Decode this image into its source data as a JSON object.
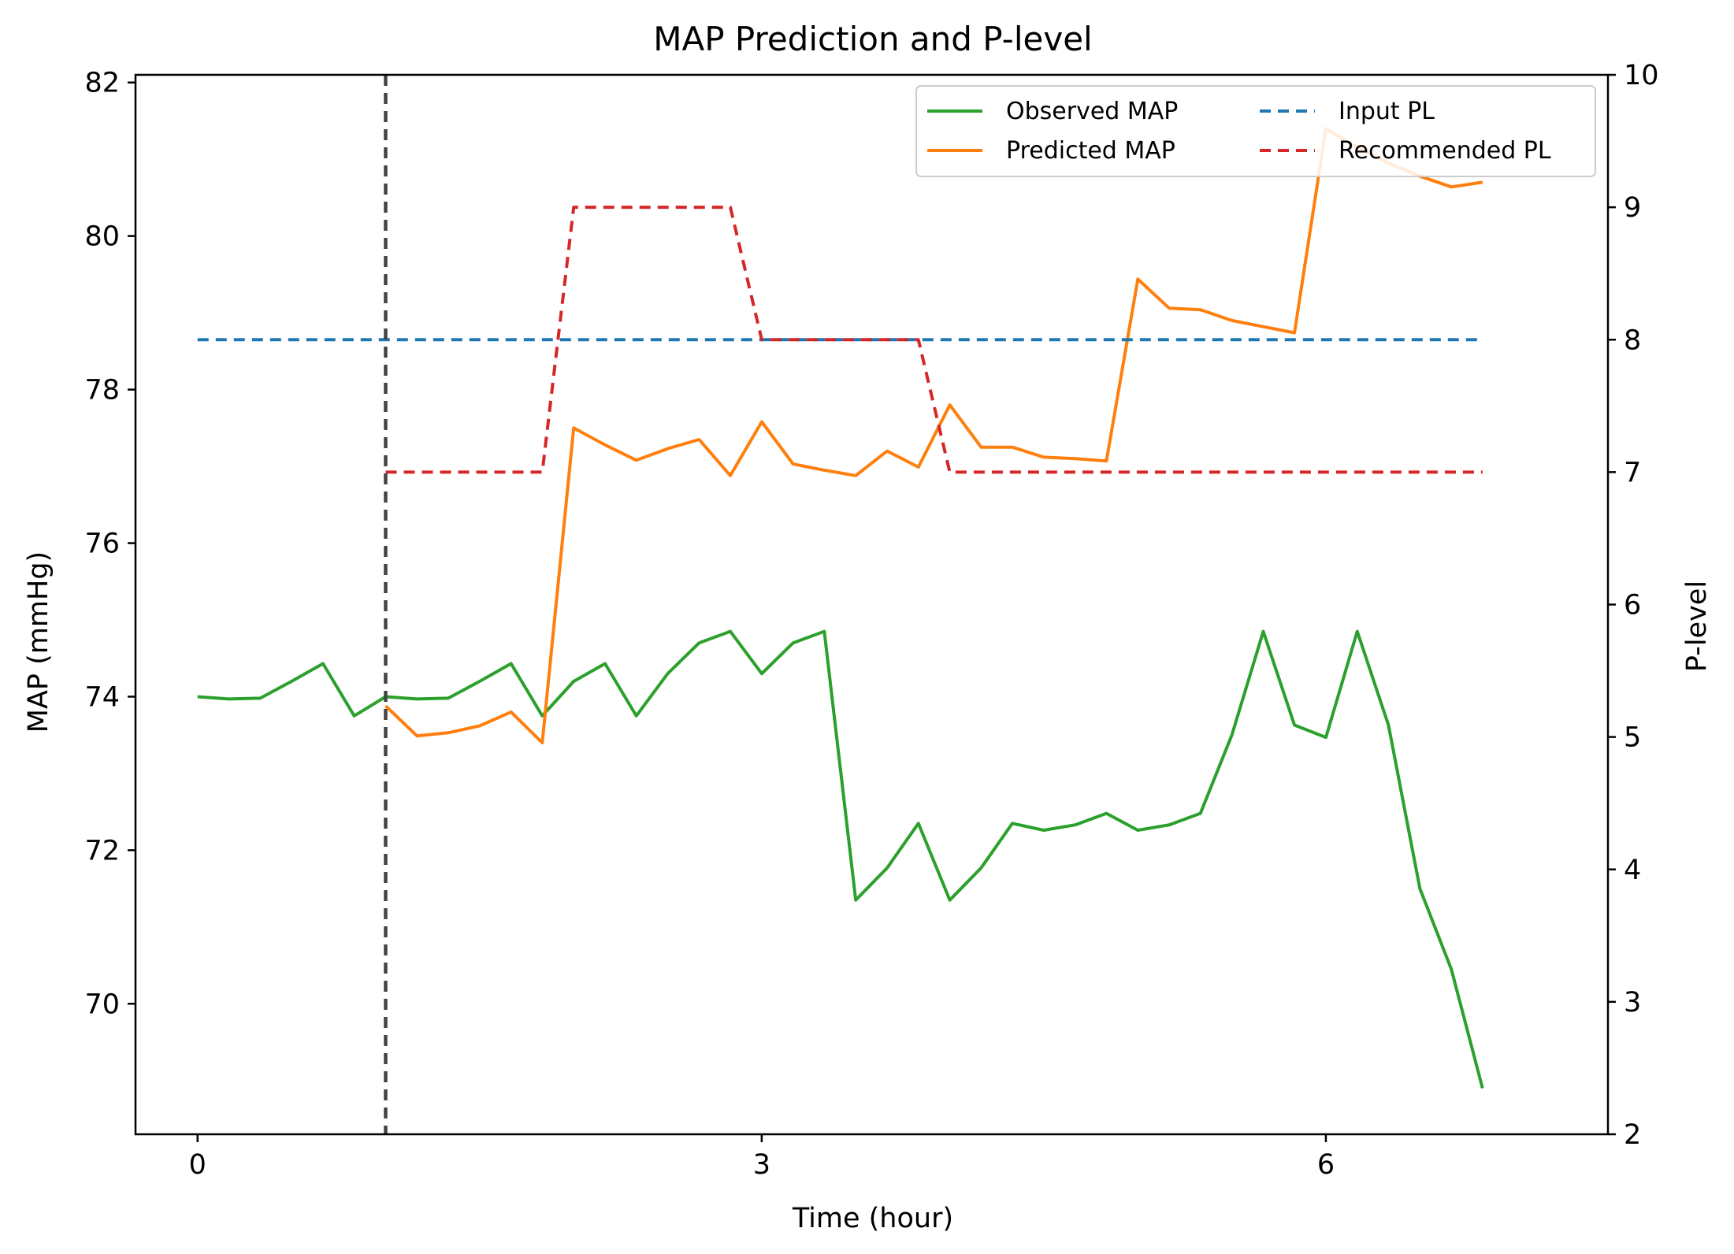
{
  "chart_data": {
    "type": "line",
    "title": "MAP Prediction and P-level",
    "xlabel": "Time (hour)",
    "ylabel": "MAP (mmHg)",
    "y2label": "P-level",
    "xlim": [
      -0.33,
      7.5
    ],
    "ylim": [
      68.3,
      82.1
    ],
    "y2lim": [
      2,
      10
    ],
    "xticks": [
      0,
      3,
      6
    ],
    "yticks": [
      70,
      72,
      74,
      76,
      78,
      80,
      82
    ],
    "y2ticks": [
      2,
      3,
      4,
      5,
      6,
      7,
      8,
      9,
      10
    ],
    "grid": false,
    "legend_location": "upper right",
    "legend_columns": 2,
    "vline": {
      "x": 1.0,
      "style": "dashed",
      "color": "#444444"
    },
    "series": [
      {
        "name": "Observed MAP",
        "axis": "left",
        "color": "#2ca02c",
        "style": "solid",
        "x": [
          0,
          0.167,
          0.333,
          0.5,
          0.667,
          0.833,
          1.0,
          1.167,
          1.333,
          1.5,
          1.667,
          1.833,
          2.0,
          2.167,
          2.333,
          2.5,
          2.667,
          2.833,
          3.0,
          3.167,
          3.333,
          3.5,
          3.667,
          3.833,
          4.0,
          4.167,
          4.333,
          4.5,
          4.667,
          4.833,
          5.0,
          5.167,
          5.333,
          5.5,
          5.667,
          5.833,
          6.0,
          6.167,
          6.333,
          6.5,
          6.667,
          6.833
        ],
        "values": [
          74.0,
          73.97,
          73.98,
          74.2,
          74.43,
          73.75,
          74.0,
          73.97,
          73.98,
          74.2,
          74.43,
          73.75,
          74.2,
          74.43,
          73.75,
          74.3,
          74.7,
          74.85,
          74.3,
          74.7,
          74.85,
          71.35,
          71.77,
          72.35,
          71.35,
          71.77,
          72.35,
          72.26,
          72.33,
          72.48,
          72.26,
          72.33,
          72.48,
          73.5,
          74.85,
          73.63,
          73.47,
          74.85,
          73.63,
          71.5,
          70.45,
          68.9
        ]
      },
      {
        "name": "Predicted MAP",
        "axis": "left",
        "color": "#ff7f0e",
        "style": "solid",
        "x": [
          1.0,
          1.167,
          1.333,
          1.5,
          1.667,
          1.833,
          2.0,
          2.167,
          2.333,
          2.5,
          2.667,
          2.833,
          3.0,
          3.167,
          3.333,
          3.5,
          3.667,
          3.833,
          4.0,
          4.167,
          4.333,
          4.5,
          4.667,
          4.833,
          5.0,
          5.167,
          5.333,
          5.5,
          5.667,
          5.833,
          6.0,
          6.167,
          6.333,
          6.5,
          6.667,
          6.833
        ],
        "values": [
          73.88,
          73.49,
          73.53,
          73.62,
          73.8,
          73.4,
          77.5,
          77.28,
          77.08,
          77.23,
          77.35,
          76.88,
          77.58,
          77.03,
          76.95,
          76.88,
          77.2,
          76.99,
          77.8,
          77.25,
          77.25,
          77.12,
          77.1,
          77.07,
          79.44,
          79.06,
          79.04,
          78.9,
          78.82,
          78.74,
          81.4,
          81.15,
          80.95,
          80.78,
          80.64,
          80.7
        ]
      },
      {
        "name": "Input PL",
        "axis": "right",
        "color": "#1f77b4",
        "style": "dashed",
        "x": [
          0,
          6.833
        ],
        "values": [
          8,
          8
        ]
      },
      {
        "name": "Recommended PL",
        "axis": "right",
        "color": "#d62728",
        "style": "dashed",
        "x": [
          1.0,
          1.167,
          1.333,
          1.5,
          1.667,
          1.833,
          2.0,
          2.167,
          2.333,
          2.5,
          2.667,
          2.833,
          3.0,
          3.167,
          3.333,
          3.5,
          3.667,
          3.833,
          4.0,
          4.167,
          4.333,
          4.5,
          4.667,
          4.833,
          5.0,
          5.167,
          5.333,
          5.5,
          5.667,
          5.833,
          6.0,
          6.167,
          6.333,
          6.5,
          6.667,
          6.833
        ],
        "values": [
          7,
          7,
          7,
          7,
          7,
          7,
          9,
          9,
          9,
          9,
          9,
          9,
          8,
          8,
          8,
          8,
          8,
          8,
          7,
          7,
          7,
          7,
          7,
          7,
          7,
          7,
          7,
          7,
          7,
          7,
          7,
          7,
          7,
          7,
          7,
          7
        ]
      }
    ]
  }
}
